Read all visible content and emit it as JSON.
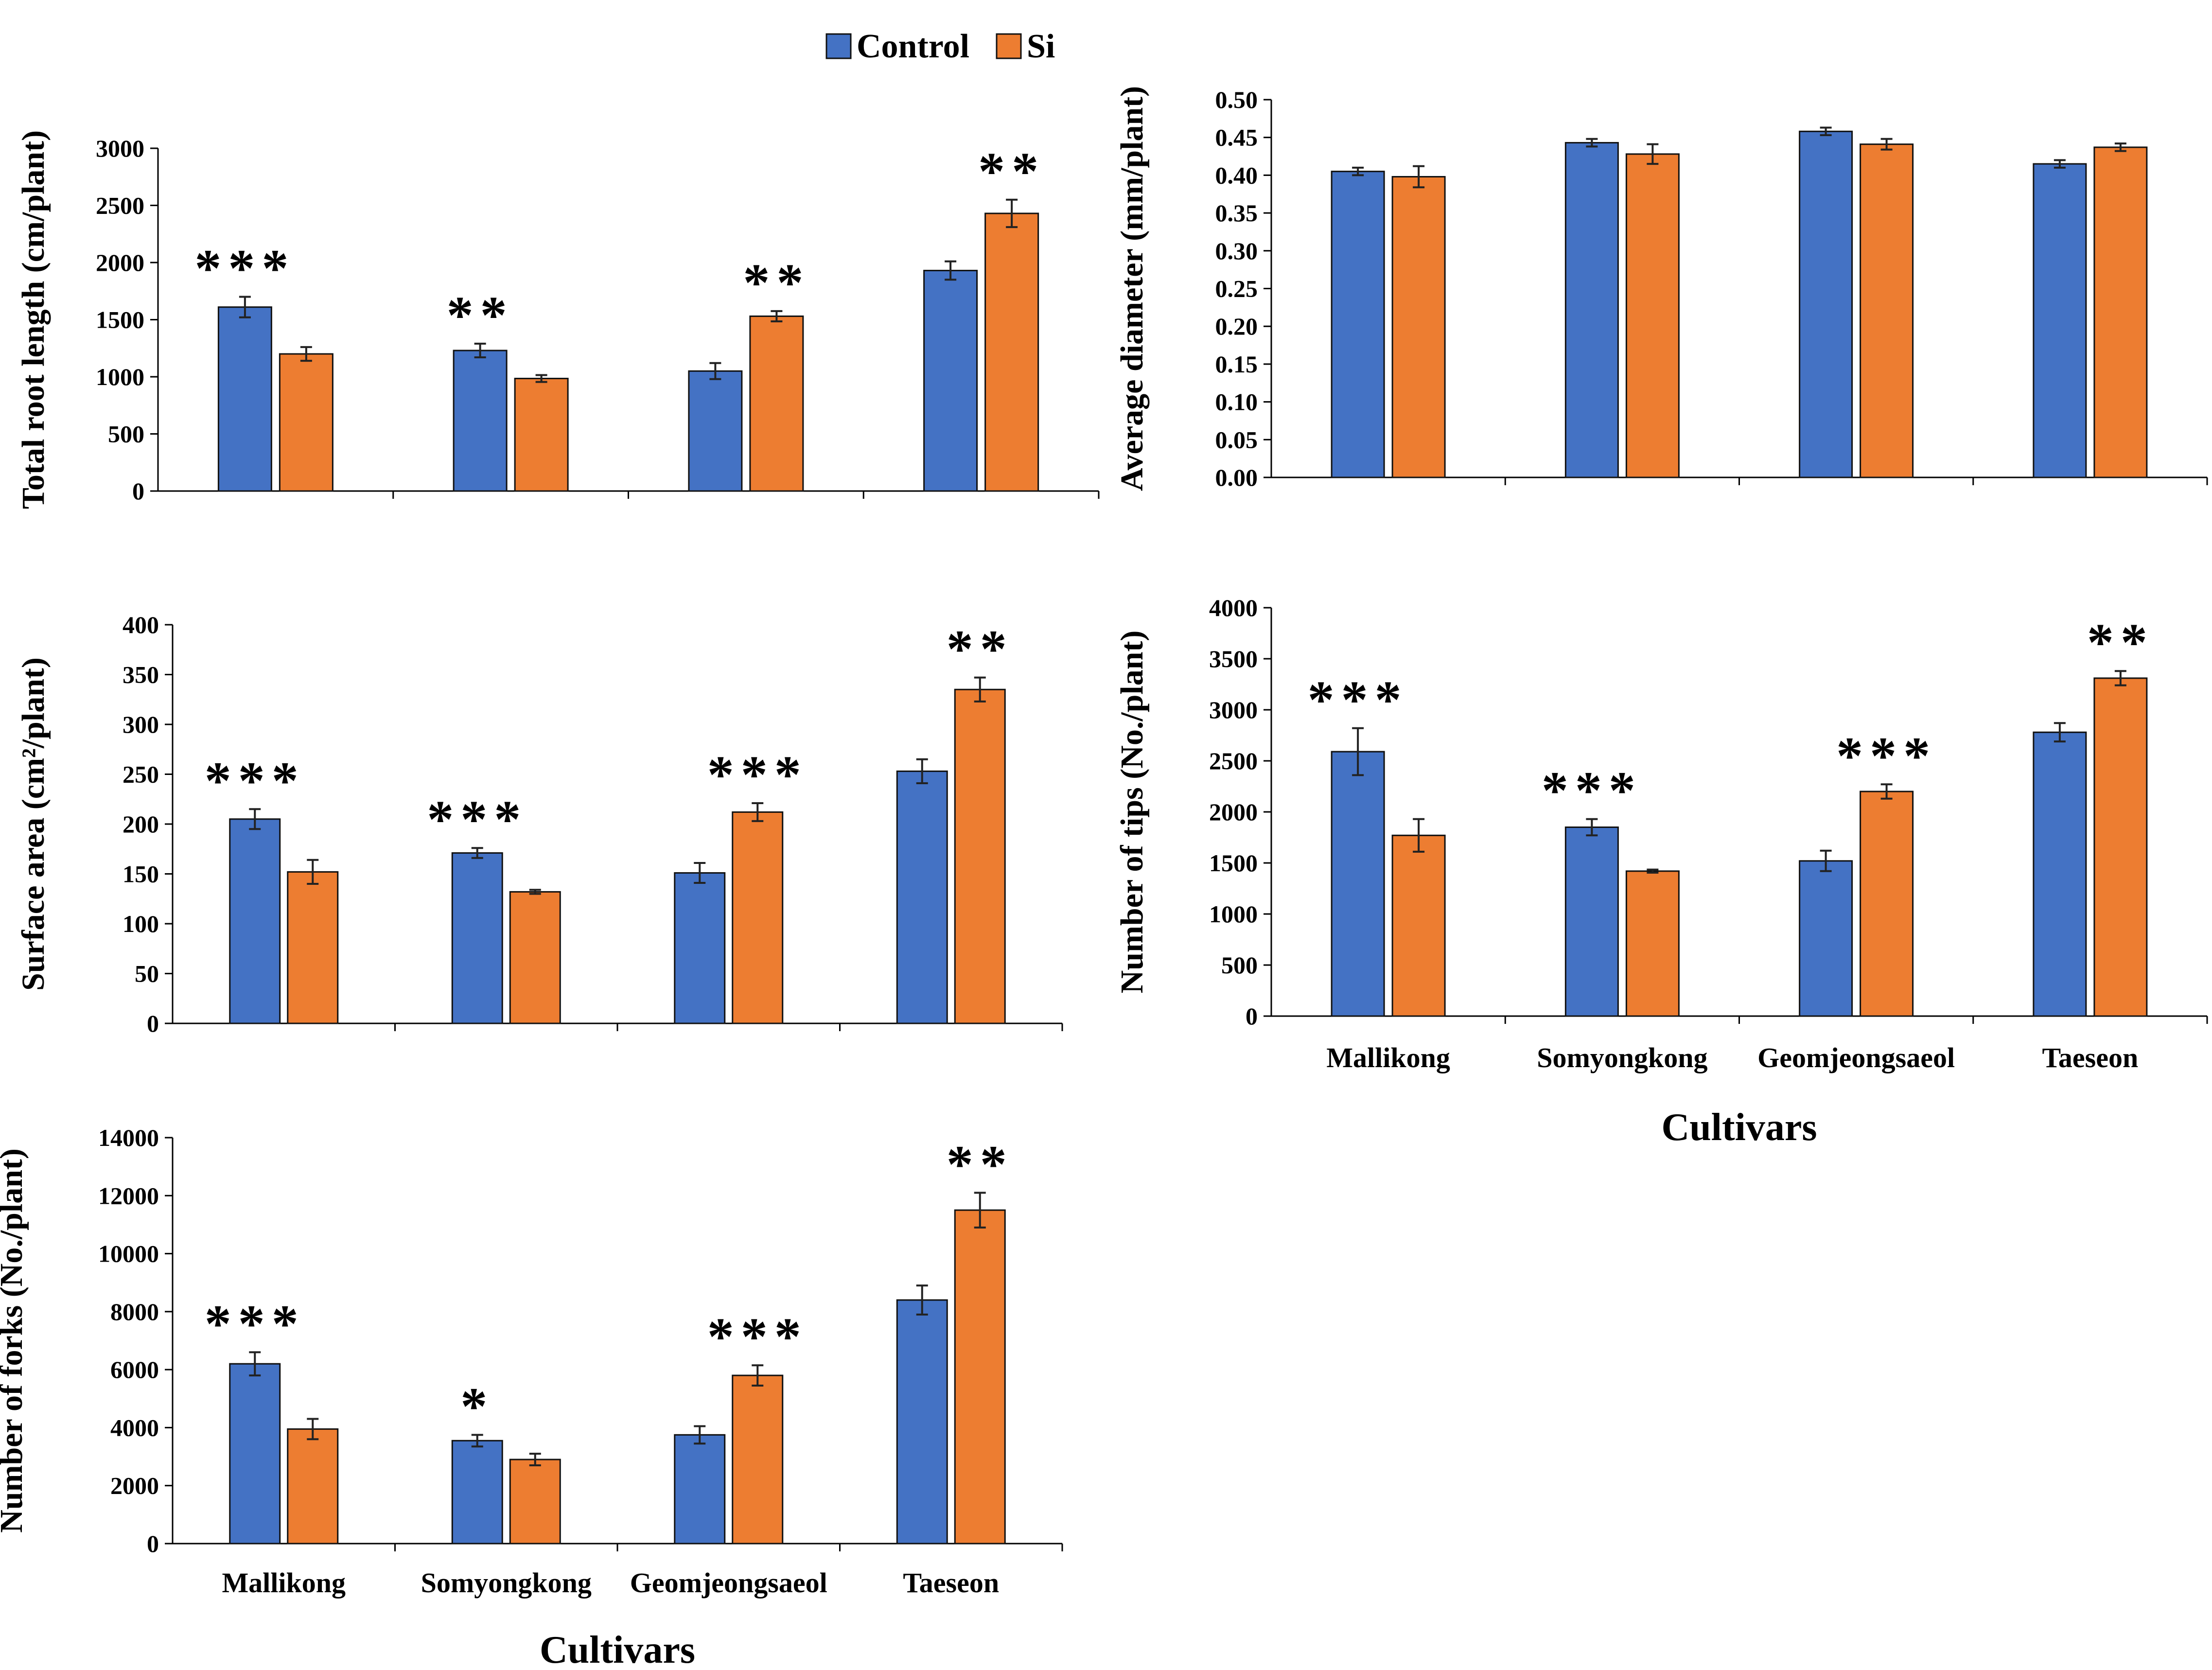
{
  "legend": {
    "control_label": "Control",
    "si_label": "Si"
  },
  "colors": {
    "control": "#4472C4",
    "si": "#ED7D31"
  },
  "chart_data": [
    {
      "id": "root-length",
      "type": "bar",
      "title": "",
      "ylabel": "Total root length (cm/plant)",
      "xlabel": "",
      "ylim": [
        0,
        3000
      ],
      "yticks": [
        "0",
        "500",
        "1000",
        "1500",
        "2000",
        "2500",
        "3000"
      ],
      "categories": [
        "Mallikong",
        "Somyongkong",
        "Geomjeongsaeol",
        "Taeseon"
      ],
      "show_category_labels": false,
      "series": [
        {
          "name": "Control",
          "values": [
            1610,
            1230,
            1050,
            1930
          ],
          "errors": [
            90,
            60,
            70,
            80
          ]
        },
        {
          "name": "Si",
          "values": [
            1200,
            985,
            1530,
            2430
          ],
          "errors": [
            60,
            30,
            45,
            120
          ]
        }
      ],
      "significance": [
        {
          "label": "***",
          "over": "Control",
          "category": "Mallikong"
        },
        {
          "label": "**",
          "over": "Control",
          "category": "Somyongkong"
        },
        {
          "label": "**",
          "over": "Si",
          "category": "Geomjeongsaeol"
        },
        {
          "label": "**",
          "over": "Si",
          "category": "Taeseon"
        }
      ]
    },
    {
      "id": "avg-diameter",
      "type": "bar",
      "title": "",
      "ylabel": "Average diameter (mm/plant)",
      "xlabel": "",
      "ylim": [
        0,
        0.5
      ],
      "yticks": [
        "0.00",
        "0.05",
        "0.10",
        "0.15",
        "0.20",
        "0.25",
        "0.30",
        "0.35",
        "0.40",
        "0.45",
        "0.50"
      ],
      "categories": [
        "Mallikong",
        "Somyongkong",
        "Geomjeongsaeol",
        "Taeseon"
      ],
      "show_category_labels": false,
      "series": [
        {
          "name": "Control",
          "values": [
            0.405,
            0.443,
            0.458,
            0.415
          ],
          "errors": [
            0.005,
            0.005,
            0.005,
            0.005
          ]
        },
        {
          "name": "Si",
          "values": [
            0.398,
            0.428,
            0.441,
            0.437
          ],
          "errors": [
            0.014,
            0.013,
            0.007,
            0.005
          ]
        }
      ],
      "significance": []
    },
    {
      "id": "surface-area",
      "type": "bar",
      "title": "",
      "ylabel": "Surface area (cm²/plant)",
      "xlabel": "",
      "ylim": [
        0,
        400
      ],
      "yticks": [
        "0",
        "50",
        "100",
        "150",
        "200",
        "250",
        "300",
        "350",
        "400"
      ],
      "categories": [
        "Mallikong",
        "Somyongkong",
        "Geomjeongsaeol",
        "Taeseon"
      ],
      "show_category_labels": false,
      "series": [
        {
          "name": "Control",
          "values": [
            205,
            171,
            151,
            253
          ],
          "errors": [
            10,
            5,
            10,
            12
          ]
        },
        {
          "name": "Si",
          "values": [
            152,
            132,
            212,
            335
          ],
          "errors": [
            12,
            2,
            9,
            12
          ]
        }
      ],
      "significance": [
        {
          "label": "***",
          "over": "Control",
          "category": "Mallikong"
        },
        {
          "label": "***",
          "over": "Control",
          "category": "Somyongkong"
        },
        {
          "label": "***",
          "over": "Si",
          "category": "Geomjeongsaeol"
        },
        {
          "label": "**",
          "over": "Si",
          "category": "Taeseon"
        }
      ]
    },
    {
      "id": "tips",
      "type": "bar",
      "title": "",
      "ylabel": "Number of tips (No./plant)",
      "xlabel": "Cultivars",
      "ylim": [
        0,
        4000
      ],
      "yticks": [
        "0",
        "500",
        "1000",
        "1500",
        "2000",
        "2500",
        "3000",
        "3500",
        "4000"
      ],
      "categories": [
        "Mallikong",
        "Somyongkong",
        "Geomjeongsaeol",
        "Taeseon"
      ],
      "show_category_labels": true,
      "series": [
        {
          "name": "Control",
          "values": [
            2590,
            1850,
            1520,
            2780
          ],
          "errors": [
            230,
            80,
            100,
            90
          ]
        },
        {
          "name": "Si",
          "values": [
            1770,
            1420,
            2200,
            3310
          ],
          "errors": [
            160,
            15,
            70,
            70
          ]
        }
      ],
      "significance": [
        {
          "label": "***",
          "over": "Control",
          "category": "Mallikong"
        },
        {
          "label": "***",
          "over": "Control",
          "category": "Somyongkong"
        },
        {
          "label": "***",
          "over": "Si",
          "category": "Geomjeongsaeol"
        },
        {
          "label": "**",
          "over": "Si",
          "category": "Taeseon"
        }
      ]
    },
    {
      "id": "forks",
      "type": "bar",
      "title": "",
      "ylabel": "Number of forks (No./plant)",
      "xlabel": "Cultivars",
      "ylim": [
        0,
        14000
      ],
      "yticks": [
        "0",
        "2000",
        "4000",
        "6000",
        "8000",
        "10000",
        "12000",
        "14000"
      ],
      "categories": [
        "Mallikong",
        "Somyongkong",
        "Geomjeongsaeol",
        "Taeseon"
      ],
      "show_category_labels": true,
      "series": [
        {
          "name": "Control",
          "values": [
            6200,
            3550,
            3750,
            8400
          ],
          "errors": [
            400,
            200,
            300,
            500
          ]
        },
        {
          "name": "Si",
          "values": [
            3950,
            2900,
            5800,
            11500
          ],
          "errors": [
            350,
            200,
            350,
            600
          ]
        }
      ],
      "significance": [
        {
          "label": "***",
          "over": "Control",
          "category": "Mallikong"
        },
        {
          "label": "*",
          "over": "Control",
          "category": "Somyongkong"
        },
        {
          "label": "***",
          "over": "Si",
          "category": "Geomjeongsaeol"
        },
        {
          "label": "**",
          "over": "Si",
          "category": "Taeseon"
        }
      ]
    }
  ]
}
